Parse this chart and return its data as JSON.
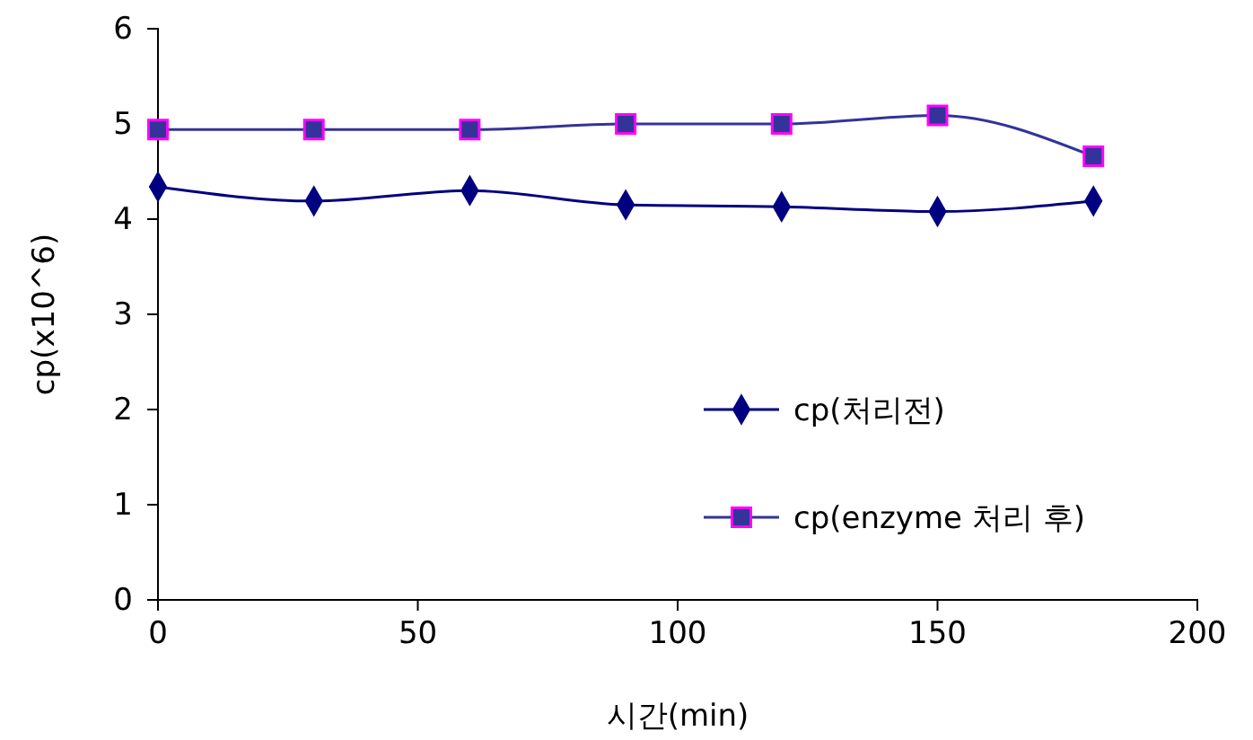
{
  "chart_data": {
    "type": "line",
    "xlabel": "시간(min)",
    "ylabel": "cp(x10^6)",
    "x": [
      0,
      30,
      60,
      90,
      120,
      150,
      180
    ],
    "series": [
      {
        "name": "cp(처리전)",
        "color": "#000080",
        "marker": "diamond",
        "values": [
          4.34,
          4.19,
          4.3,
          4.15,
          4.13,
          4.08,
          4.19
        ]
      },
      {
        "name": "cp(enzyme 처리 후)",
        "color": "#333399",
        "marker": "square",
        "values": [
          4.94,
          4.94,
          4.94,
          5.0,
          5.0,
          5.09,
          4.66
        ]
      }
    ],
    "xlim": [
      0,
      200
    ],
    "xticks": [
      0,
      50,
      100,
      150,
      200
    ],
    "ylim": [
      0,
      6
    ],
    "yticks": [
      0,
      1,
      2,
      3,
      4,
      5,
      6
    ],
    "grid": false,
    "legend": "right",
    "line_style": "solid"
  }
}
